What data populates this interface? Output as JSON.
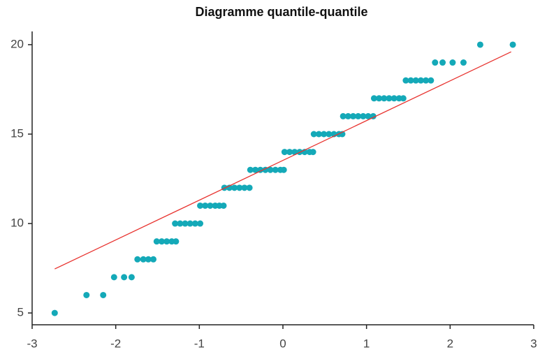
{
  "chart_data": {
    "type": "scatter",
    "title": "Diagramme quantile-quantile",
    "series": [
      {
        "color": "#14a9b8",
        "x": [
          -2.73,
          -2.35,
          -2.15,
          -2.02,
          -1.9,
          -1.81,
          -1.74,
          -1.67,
          -1.61,
          -1.55,
          -1.51,
          -1.45,
          -1.39,
          -1.33,
          -1.28,
          -1.29,
          -1.23,
          -1.17,
          -1.11,
          -1.05,
          -0.99,
          -0.99,
          -0.93,
          -0.87,
          -0.81,
          -0.76,
          -0.71,
          -0.7,
          -0.64,
          -0.58,
          -0.52,
          -0.46,
          -0.4,
          -0.39,
          -0.33,
          -0.27,
          -0.21,
          -0.15,
          -0.09,
          -0.03,
          0.01,
          0.02,
          0.08,
          0.14,
          0.2,
          0.26,
          0.32,
          0.36,
          0.37,
          0.43,
          0.49,
          0.55,
          0.61,
          0.67,
          0.71,
          0.72,
          0.78,
          0.84,
          0.9,
          0.96,
          1.02,
          1.08,
          1.09,
          1.15,
          1.21,
          1.27,
          1.33,
          1.39,
          1.44,
          1.47,
          1.53,
          1.59,
          1.65,
          1.71,
          1.77,
          1.82,
          1.91,
          2.03,
          2.16,
          2.36,
          2.75
        ],
        "values": [
          5,
          6,
          6,
          7,
          7,
          7,
          8,
          8,
          8,
          8,
          9,
          9,
          9,
          9,
          9,
          10,
          10,
          10,
          10,
          10,
          10,
          11,
          11,
          11,
          11,
          11,
          11,
          12,
          12,
          12,
          12,
          12,
          12,
          13,
          13,
          13,
          13,
          13,
          13,
          13,
          13,
          14,
          14,
          14,
          14,
          14,
          14,
          14,
          15,
          15,
          15,
          15,
          15,
          15,
          15,
          16,
          16,
          16,
          16,
          16,
          16,
          16,
          17,
          17,
          17,
          17,
          17,
          17,
          17,
          18,
          18,
          18,
          18,
          18,
          18,
          19,
          19,
          19,
          19,
          20,
          20
        ]
      }
    ],
    "reference_line": {
      "color": "#e8332f",
      "x": [
        -2.73,
        2.73
      ],
      "values": [
        7.46,
        19.6
      ]
    },
    "xlim": [
      -3,
      3
    ],
    "xticks": [
      -3,
      -2,
      -1,
      0,
      1,
      2,
      3
    ],
    "ylim": [
      4.34,
      20.74
    ],
    "yticks": [
      5,
      10,
      15,
      20
    ],
    "grid": false
  }
}
